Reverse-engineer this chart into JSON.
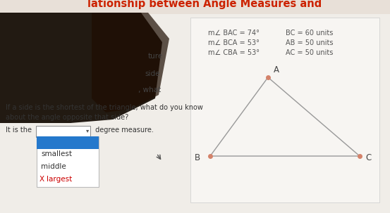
{
  "title": "lationship between Angle Measures and",
  "title_color": "#cc2200",
  "bg_overall": "#d0cec8",
  "bg_page": "#f0ede8",
  "angle_lines": [
    "m∠ BAC = 74°",
    "m∠ BCA = 53°",
    "m∠ CBA = 53°"
  ],
  "side_lines": [
    "BC = 60 units",
    "AB = 50 units",
    "AC = 50 units"
  ],
  "vertex_color": "#d4826a",
  "triangle_line_color": "#999999",
  "question_line1": "If a side is the shortest of the triangle, what do you know",
  "question_line2": "about the angle opposite that side?",
  "it_is_text": "It is the",
  "degree_text": " degree measure.",
  "dropdown_box_color": "#2478cc",
  "dropdown_items": [
    "smallest",
    "middle",
    "X largest"
  ],
  "partial_text_ture": "ture",
  "partial_text_side": "side",
  "partial_text_what": ", what",
  "hand_dark": "#100800",
  "hand_mid": "#2a1500",
  "cursor_color": "#555555",
  "text_color": "#555555",
  "title_fontsize": 10.5,
  "body_fontsize": 7.0,
  "dd_item_fontsize": 7.5
}
